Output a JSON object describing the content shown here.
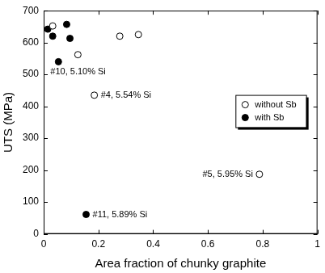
{
  "chart_data": {
    "type": "scatter",
    "x_label": "Area fraction of chunky graphite",
    "y_label": "UTS (MPa)",
    "xlim": [
      0,
      1
    ],
    "xticks": [
      0,
      0.2,
      0.4,
      0.6,
      0.8,
      1
    ],
    "ylim": [
      0,
      700
    ],
    "yticks": [
      0,
      100,
      200,
      300,
      400,
      500,
      600,
      700
    ],
    "grid": false,
    "legend": "right",
    "series": [
      {
        "name": "without Sb",
        "color": "#000000",
        "marker": "circle_open",
        "x": [
          0.033,
          0.125,
          0.185,
          0.278,
          0.346,
          0.788
        ],
        "values": [
          652,
          562,
          435,
          620,
          625,
          187
        ]
      },
      {
        "name": "with Sb",
        "color": "#000000",
        "marker": "circle",
        "x": [
          0.015,
          0.033,
          0.054,
          0.084,
          0.096,
          0.155
        ],
        "values": [
          642,
          620,
          540,
          657,
          613,
          61
        ]
      }
    ],
    "annotations": [
      {
        "text": "#10, 5.10% Si",
        "x": 0.054,
        "y": 540
      },
      {
        "text": "#4, 5.54% Si",
        "x": 0.185,
        "y": 435
      },
      {
        "text": "#5, 5.95% Si",
        "x": 0.788,
        "y": 187
      },
      {
        "text": "#11, 5.89% Si",
        "x": 0.155,
        "y": 61
      }
    ]
  }
}
